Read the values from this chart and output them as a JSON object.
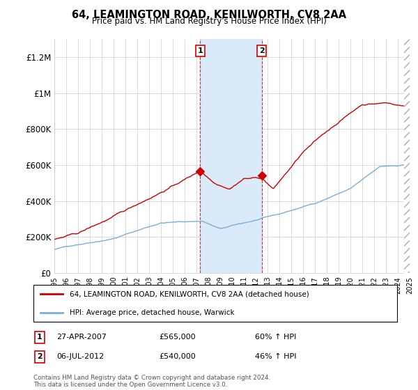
{
  "title": "64, LEAMINGTON ROAD, KENILWORTH, CV8 2AA",
  "subtitle": "Price paid vs. HM Land Registry's House Price Index (HPI)",
  "x_start_year": 1995,
  "x_end_year": 2025,
  "ylim": [
    0,
    1300000
  ],
  "yticks": [
    0,
    200000,
    400000,
    600000,
    800000,
    1000000,
    1200000
  ],
  "ytick_labels": [
    "£0",
    "£200K",
    "£400K",
    "£600K",
    "£800K",
    "£1M",
    "£1.2M"
  ],
  "sale1": {
    "date_year": 2007.32,
    "price": 565000,
    "label": "1",
    "date_str": "27-APR-2007",
    "price_str": "£565,000",
    "pct": "60% ↑ HPI"
  },
  "sale2": {
    "date_year": 2012.51,
    "price": 540000,
    "label": "2",
    "date_str": "06-JUL-2012",
    "price_str": "£540,000",
    "pct": "46% ↑ HPI"
  },
  "hpi_line_color": "#7aaed6",
  "price_line_color": "#cc0000",
  "highlight_fill_color": "#daeaf8",
  "legend_label_price": "64, LEAMINGTON ROAD, KENILWORTH, CV8 2AA (detached house)",
  "legend_label_hpi": "HPI: Average price, detached house, Warwick",
  "footer": "Contains HM Land Registry data © Crown copyright and database right 2024.\nThis data is licensed under the Open Government Licence v3.0.",
  "background_color": "#ffffff"
}
